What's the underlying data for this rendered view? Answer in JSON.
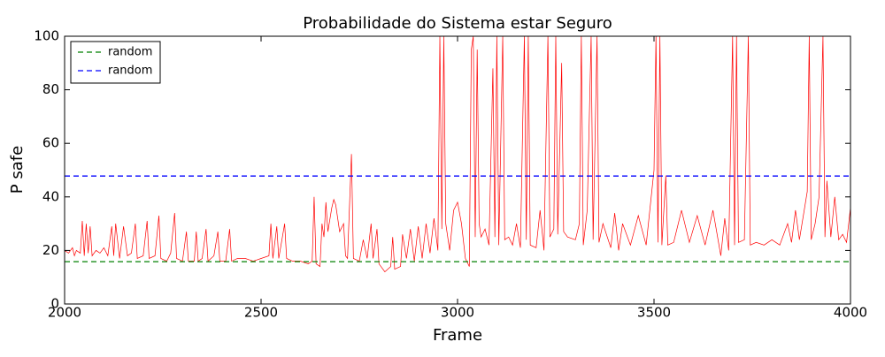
{
  "chart_data": {
    "type": "line",
    "title": "Probabilidade do Sistema estar Seguro",
    "x_label": "Frame",
    "y_label": "P safe",
    "xlim": [
      2000,
      4000
    ],
    "ylim": [
      0,
      100
    ],
    "xticks": [
      2000,
      2500,
      3000,
      3500,
      4000
    ],
    "yticks": [
      0,
      20,
      40,
      60,
      80,
      100
    ],
    "grid": false,
    "legend": "upper left",
    "x": [
      2000,
      2010,
      2020,
      2025,
      2030,
      2040,
      2045,
      2050,
      2055,
      2060,
      2065,
      2070,
      2080,
      2090,
      2100,
      2110,
      2120,
      2125,
      2130,
      2140,
      2150,
      2160,
      2170,
      2180,
      2185,
      2200,
      2210,
      2215,
      2230,
      2240,
      2245,
      2260,
      2270,
      2280,
      2285,
      2300,
      2310,
      2315,
      2330,
      2335,
      2340,
      2350,
      2360,
      2365,
      2380,
      2390,
      2395,
      2410,
      2420,
      2425,
      2440,
      2460,
      2480,
      2500,
      2520,
      2525,
      2530,
      2540,
      2545,
      2560,
      2565,
      2580,
      2600,
      2620,
      2630,
      2635,
      2640,
      2650,
      2655,
      2660,
      2665,
      2670,
      2680,
      2685,
      2690,
      2700,
      2710,
      2715,
      2720,
      2730,
      2735,
      2750,
      2760,
      2770,
      2780,
      2785,
      2795,
      2800,
      2815,
      2830,
      2835,
      2840,
      2855,
      2860,
      2870,
      2880,
      2890,
      2900,
      2910,
      2920,
      2930,
      2940,
      2950,
      2955,
      2960,
      2965,
      2970,
      2980,
      2990,
      3000,
      3010,
      3020,
      3030,
      3035,
      3040,
      3045,
      3050,
      3055,
      3060,
      3070,
      3080,
      3090,
      3095,
      3100,
      3105,
      3115,
      3120,
      3130,
      3140,
      3150,
      3160,
      3170,
      3175,
      3180,
      3185,
      3200,
      3210,
      3220,
      3230,
      3235,
      3245,
      3250,
      3255,
      3265,
      3270,
      3280,
      3300,
      3310,
      3315,
      3320,
      3330,
      3340,
      3345,
      3355,
      3360,
      3370,
      3390,
      3400,
      3410,
      3420,
      3440,
      3460,
      3480,
      3500,
      3505,
      3510,
      3515,
      3520,
      3530,
      3535,
      3550,
      3570,
      3590,
      3610,
      3630,
      3650,
      3670,
      3680,
      3690,
      3700,
      3705,
      3710,
      3715,
      3730,
      3740,
      3745,
      3760,
      3780,
      3800,
      3820,
      3840,
      3850,
      3860,
      3870,
      3880,
      3890,
      3895,
      3900,
      3910,
      3920,
      3930,
      3935,
      3940,
      3950,
      3960,
      3970,
      3980,
      3990,
      4000
    ],
    "series": [
      {
        "color": "#ff0000",
        "values": [
          20,
          19,
          21,
          18,
          20,
          19,
          31,
          18,
          30,
          19,
          29,
          18,
          20,
          19,
          21,
          18,
          29,
          18,
          30,
          17,
          29,
          18,
          19,
          30,
          17,
          18,
          31,
          17,
          18,
          33,
          17,
          16,
          19,
          34,
          17,
          16,
          27,
          16,
          16,
          27,
          16,
          17,
          28,
          16,
          18,
          27,
          16,
          16,
          28,
          16,
          17,
          17,
          16,
          17,
          18,
          30,
          17,
          29,
          17,
          30,
          17,
          16,
          16,
          15,
          16,
          40,
          15,
          14,
          30,
          25,
          38,
          27,
          36,
          39,
          37,
          27,
          30,
          18,
          17,
          56,
          17,
          16,
          24,
          17,
          30,
          17,
          28,
          15,
          12,
          14,
          25,
          13,
          14,
          26,
          17,
          28,
          16,
          29,
          17,
          30,
          19,
          32,
          20,
          100,
          28,
          100,
          30,
          20,
          35,
          38,
          30,
          17,
          14,
          95,
          100,
          25,
          95,
          30,
          25,
          28,
          22,
          88,
          25,
          100,
          22,
          100,
          24,
          25,
          22,
          30,
          21,
          100,
          24,
          100,
          22,
          21,
          35,
          20,
          100,
          25,
          28,
          100,
          26,
          90,
          27,
          25,
          24,
          30,
          100,
          22,
          35,
          100,
          24,
          100,
          23,
          30,
          21,
          34,
          20,
          30,
          22,
          33,
          22,
          50,
          100,
          23,
          100,
          22,
          48,
          22,
          23,
          35,
          23,
          33,
          22,
          35,
          18,
          32,
          20,
          100,
          22,
          100,
          23,
          24,
          100,
          22,
          23,
          22,
          24,
          22,
          30,
          23,
          35,
          24,
          33,
          42,
          100,
          24,
          30,
          40,
          100,
          25,
          46,
          25,
          40,
          24,
          26,
          23,
          36
        ]
      }
    ],
    "hlines": [
      {
        "name": "random",
        "color": "#008000",
        "value": 15.8
      },
      {
        "name": "random",
        "color": "#0000ff",
        "value": 47.8
      }
    ]
  }
}
